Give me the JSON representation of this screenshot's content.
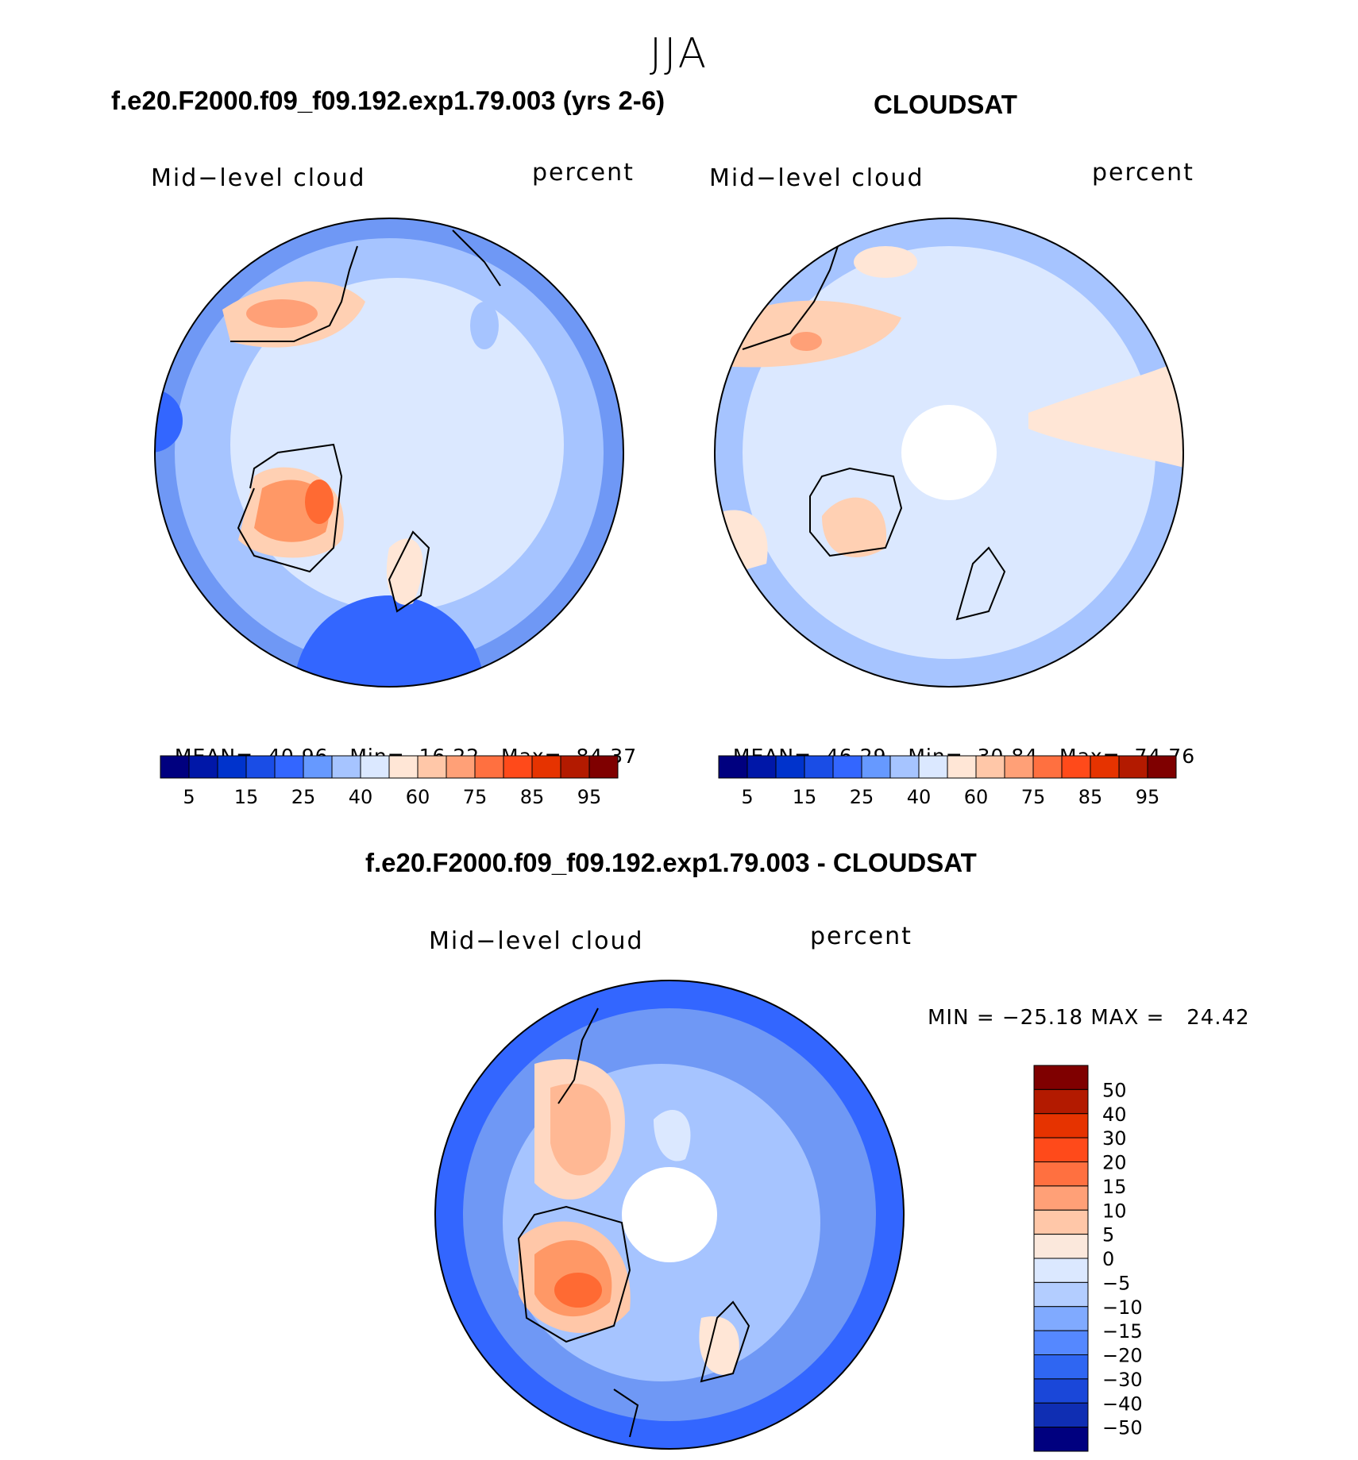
{
  "season": "JJA",
  "panels": [
    {
      "title": "f.e20.F2000.f09_f09.192.exp1.79.003 (yrs 2-6)",
      "left_label": "Mid−level cloud",
      "right_label": "percent",
      "stats": {
        "mean_label": "MEAN=",
        "mean": "40.96",
        "min_label": "Min=",
        "min": "16.22",
        "max_label": "Max=",
        "max": "84.37"
      }
    },
    {
      "title": "CLOUDSAT",
      "left_label": "Mid−level cloud",
      "right_label": "percent",
      "stats": {
        "mean_label": "MEAN=",
        "mean": "46.29",
        "min_label": "Min=",
        "min": "30.84",
        "max_label": "Max=",
        "max": "74.76"
      }
    },
    {
      "title": "f.e20.F2000.f09_f09.192.exp1.79.003 - CLOUDSAT",
      "left_label": "Mid−level cloud",
      "right_label": "percent",
      "minmax": "MIN = −25.18 MAX =   24.42"
    }
  ],
  "abs_colorbar": {
    "colors": [
      "#00007f",
      "#0017a8",
      "#0033cc",
      "#1a4de6",
      "#3366ff",
      "#6699ff",
      "#a6c4ff",
      "#dbe8ff",
      "#ffe6d6",
      "#ffc7a8",
      "#ffa077",
      "#ff7040",
      "#ff4a1a",
      "#e63300",
      "#b31a00",
      "#7f0000"
    ],
    "labels": [
      "5",
      "15",
      "25",
      "40",
      "60",
      "75",
      "85",
      "95"
    ]
  },
  "diff_colorbar": {
    "colors": [
      "#7f0000",
      "#b31a00",
      "#e63300",
      "#ff4a1a",
      "#ff7040",
      "#ffa077",
      "#ffc7a8",
      "#fbe8dc",
      "#dbe8ff",
      "#b3cdff",
      "#80aaff",
      "#5588ff",
      "#2f66f2",
      "#1a47d9",
      "#0f2eb3",
      "#00007f"
    ],
    "labels": [
      "50",
      "40",
      "30",
      "20",
      "15",
      "10",
      "5",
      "0",
      "−5",
      "−10",
      "−15",
      "−20",
      "−30",
      "−40",
      "−50"
    ]
  }
}
